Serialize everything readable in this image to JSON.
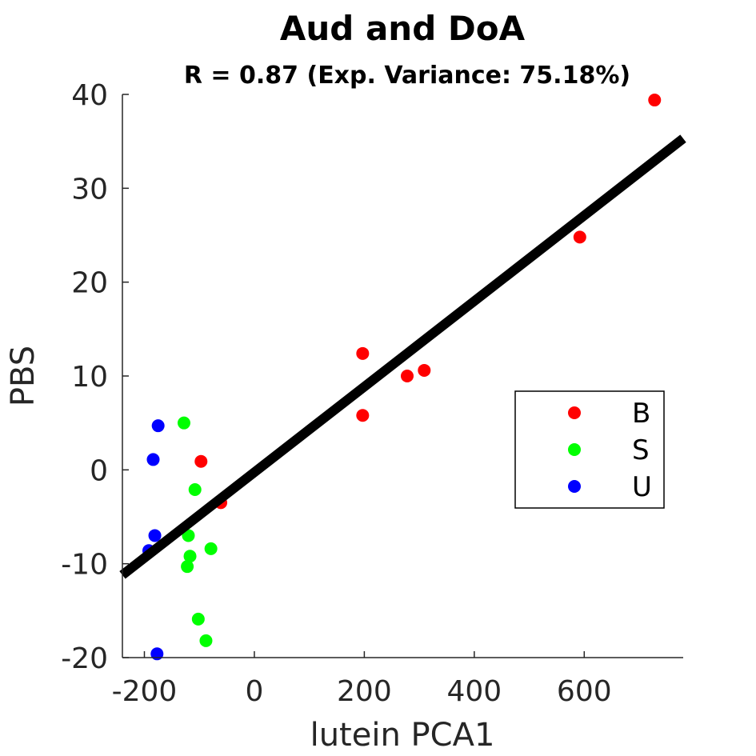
{
  "chart_data": {
    "type": "scatter",
    "title": "Aud and DoA",
    "subtitle": "R = 0.87 (Exp. Variance: 75.18%)",
    "xlabel": "lutein PCA1",
    "ylabel": "PBS",
    "xlim": [
      -240,
      780
    ],
    "ylim": [
      -20,
      40
    ],
    "xticks": [
      -200,
      0,
      200,
      400,
      600
    ],
    "xtick_labels": [
      "-200",
      "0",
      "200",
      "400",
      "600"
    ],
    "yticks": [
      -20,
      -10,
      0,
      10,
      20,
      30,
      40
    ],
    "ytick_labels": [
      "-20",
      "-10",
      "0",
      "10",
      "20",
      "30",
      "40"
    ],
    "grid": false,
    "legend_position": "right",
    "series": [
      {
        "name": "B",
        "color": "#ff0000",
        "points": [
          [
            728,
            39.4
          ],
          [
            592,
            24.8
          ],
          [
            197,
            12.4
          ],
          [
            309,
            10.6
          ],
          [
            278,
            10.0
          ],
          [
            197,
            5.8
          ],
          [
            -97,
            0.9
          ],
          [
            -61,
            -3.5
          ]
        ]
      },
      {
        "name": "S",
        "color": "#00ff00",
        "points": [
          [
            -128,
            5.0
          ],
          [
            -108,
            -2.1
          ],
          [
            -120,
            -7.0
          ],
          [
            -117,
            -9.2
          ],
          [
            -79,
            -8.4
          ],
          [
            -122,
            -10.3
          ],
          [
            -102,
            -15.9
          ],
          [
            -88,
            -18.2
          ]
        ]
      },
      {
        "name": "U",
        "color": "#0000ff",
        "points": [
          [
            -175,
            4.7
          ],
          [
            -184,
            1.1
          ],
          [
            -181,
            -7.0
          ],
          [
            -192,
            -8.6
          ],
          [
            -177,
            -19.6
          ]
        ]
      }
    ],
    "fit_line": {
      "color": "#000000",
      "x": [
        -240,
        780
      ],
      "y": [
        -11.2,
        35.3
      ]
    }
  }
}
